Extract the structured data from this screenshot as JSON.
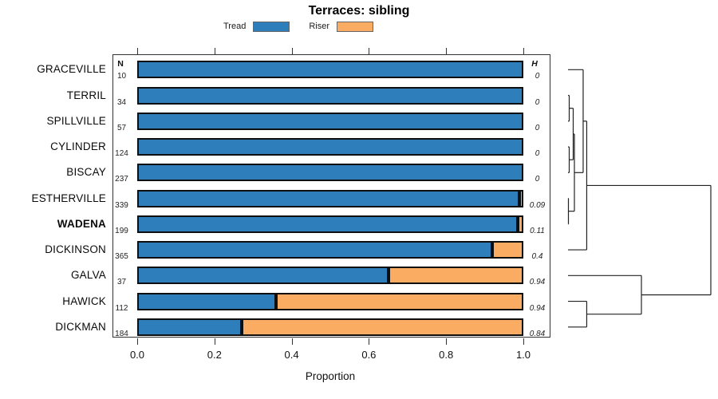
{
  "title": "Terraces: sibling",
  "legend": {
    "items": [
      {
        "label": "Tread",
        "color": "#2E7EBC"
      },
      {
        "label": "Riser",
        "color": "#FBAC63"
      }
    ]
  },
  "axis": {
    "label": "Proportion",
    "ticks": [
      "0.0",
      "0.2",
      "0.4",
      "0.6",
      "0.8",
      "1.0"
    ],
    "range": [
      0,
      1
    ]
  },
  "columns": {
    "n_header": "N",
    "h_header": "H"
  },
  "chart_data": {
    "type": "bar",
    "stacked": true,
    "orientation": "horizontal",
    "title": "Terraces: sibling",
    "xlabel": "Proportion",
    "xlim": [
      0,
      1
    ],
    "categories": [
      "GRACEVILLE",
      "TERRIL",
      "SPILLVILLE",
      "CYLINDER",
      "BISCAY",
      "ESTHERVILLE",
      "WADENA",
      "DICKINSON",
      "GALVA",
      "HAWICK",
      "DICKMAN"
    ],
    "bold_category": "WADENA",
    "series": [
      {
        "name": "Tread",
        "values": [
          1.0,
          1.0,
          1.0,
          1.0,
          1.0,
          0.99,
          0.985,
          0.92,
          0.65,
          0.36,
          0.27
        ]
      },
      {
        "name": "Riser",
        "values": [
          0.0,
          0.0,
          0.0,
          0.0,
          0.0,
          0.01,
          0.015,
          0.08,
          0.35,
          0.64,
          0.73
        ]
      }
    ],
    "N": [
      10,
      34,
      57,
      124,
      237,
      339,
      199,
      365,
      37,
      112,
      184
    ],
    "H": [
      "0",
      "0",
      "0",
      "0",
      "0",
      "0.09",
      "0.11",
      "0.4",
      "0.94",
      "0.94",
      "0.84"
    ]
  },
  "dendrogram": {
    "tree": {
      "height": 1.0,
      "children": [
        {
          "height": 0.131,
          "children": [
            {
              "height": 0.106,
              "children": [
                {
                  "leaf": "GRACEVILLE"
                },
                {
                  "height": 0.0447,
                  "children": [
                    {
                      "height": 0.0363,
                      "children": [
                        {
                          "height": 0.0084,
                          "children": [
                            {
                              "leaf": "TERRIL"
                            },
                            {
                              "leaf": "SPILLVILLE"
                            }
                          ]
                        },
                        {
                          "height": 0.0084,
                          "children": [
                            {
                              "leaf": "CYLINDER"
                            },
                            {
                              "leaf": "BISCAY"
                            }
                          ]
                        }
                      ]
                    },
                    {
                      "height": 0.0028,
                      "children": [
                        {
                          "leaf": "ESTHERVILLE"
                        },
                        {
                          "leaf": "WADENA"
                        }
                      ]
                    }
                  ]
                }
              ]
            },
            {
              "leaf": "DICKINSON"
            }
          ]
        },
        {
          "height": 0.514,
          "children": [
            {
              "leaf": "GALVA"
            },
            {
              "height": 0.131,
              "children": [
                {
                  "leaf": "HAWICK"
                },
                {
                  "leaf": "DICKMAN"
                }
              ]
            }
          ]
        }
      ]
    }
  }
}
